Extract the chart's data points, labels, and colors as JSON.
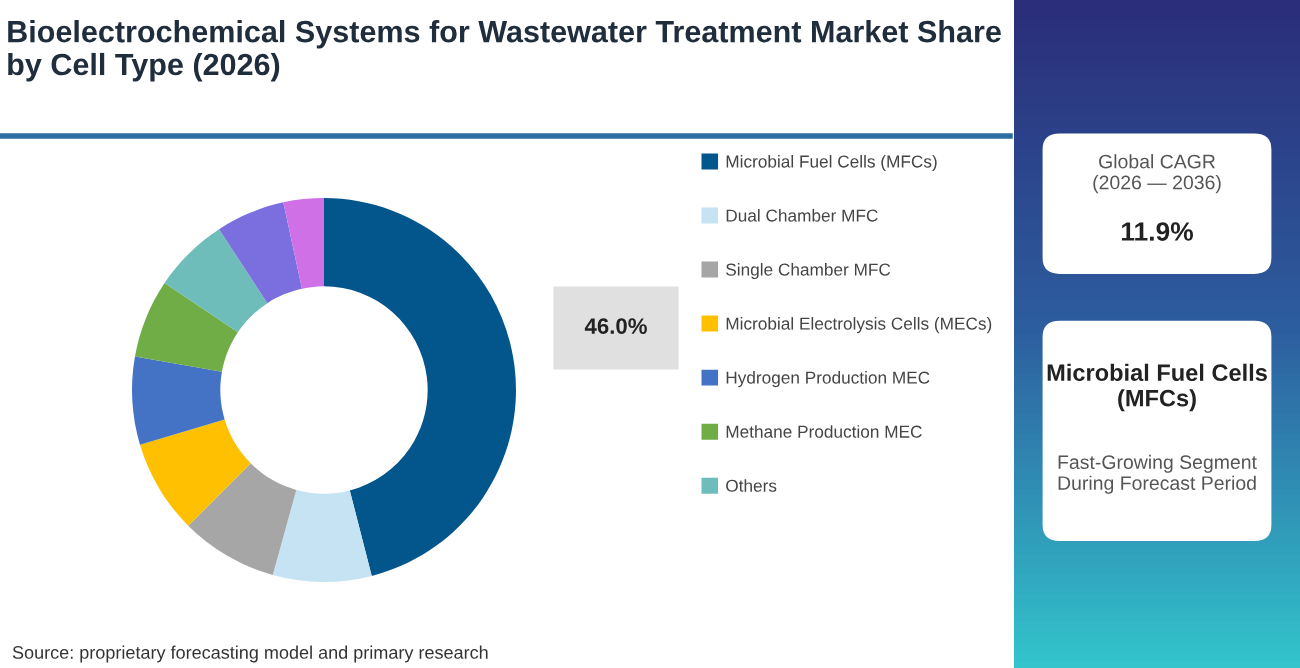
{
  "chart_data": [
    {
      "type": "donut",
      "title": "Bioelectrochemical Systems for Wastewater Treatment Market Share by Cell Type (2026)",
      "categories": [
        "Microbial Fuel Cells (MFCs)",
        "Dual Chamber MFC",
        "Single Chamber MFC",
        "Microbial Electrolysis Cells (MECs)",
        "Hydrogen Production MEC",
        "Methane Production MEC",
        "Others",
        null,
        null
      ],
      "values": [
        46.0,
        8.3,
        8.2,
        7.9,
        7.4,
        6.6,
        6.4,
        5.8,
        3.4
      ],
      "colors": [
        "#02568b",
        "#c5e3f3",
        "#a6a6a6",
        "#fec000",
        "#4472c4",
        "#70ad47",
        "#6fbdbb",
        "#7b6fe0",
        "#d070e6"
      ],
      "value_labels": [
        "46.0%",
        null,
        null,
        null,
        null,
        null,
        null,
        null,
        null
      ],
      "legend": "right",
      "annotations": [
        "Source: proprietary forecasting model and primary research"
      ]
    },
    {
      "type": "other",
      "annotations": [
        "Global CAGR\n(2026 — 2036)",
        "11.9%",
        "Microbial Fuel Cells (MFCs)",
        "Fast-Growing Segment\nDuring Forecast Period"
      ]
    }
  ]
}
